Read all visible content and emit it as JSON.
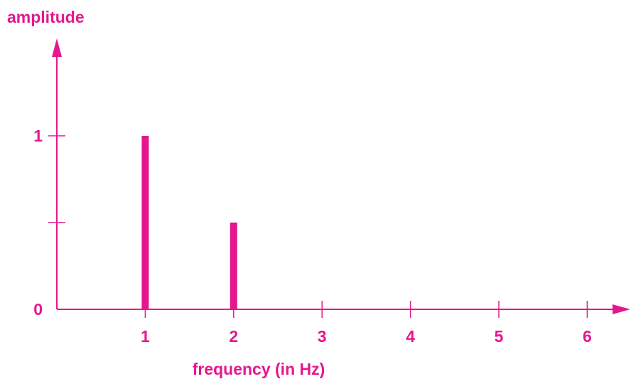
{
  "colors": {
    "accent": "#e5178f"
  },
  "chart_data": {
    "type": "bar",
    "title": "",
    "xlabel": "frequency (in Hz)",
    "ylabel": "amplitude",
    "x": [
      1,
      2
    ],
    "values": [
      1,
      0.5
    ],
    "xlim": [
      0,
      6.4
    ],
    "ylim": [
      0,
      2
    ],
    "x_ticks": [
      1,
      2,
      3,
      4,
      5,
      6
    ],
    "x_tick_labels": [
      "1",
      "2",
      "3",
      "4",
      "5",
      "6"
    ],
    "y_ticks": [
      0,
      0.5,
      1
    ],
    "y_tick_labels": [
      "0",
      "",
      "1"
    ],
    "grid": false,
    "legend": "none"
  }
}
